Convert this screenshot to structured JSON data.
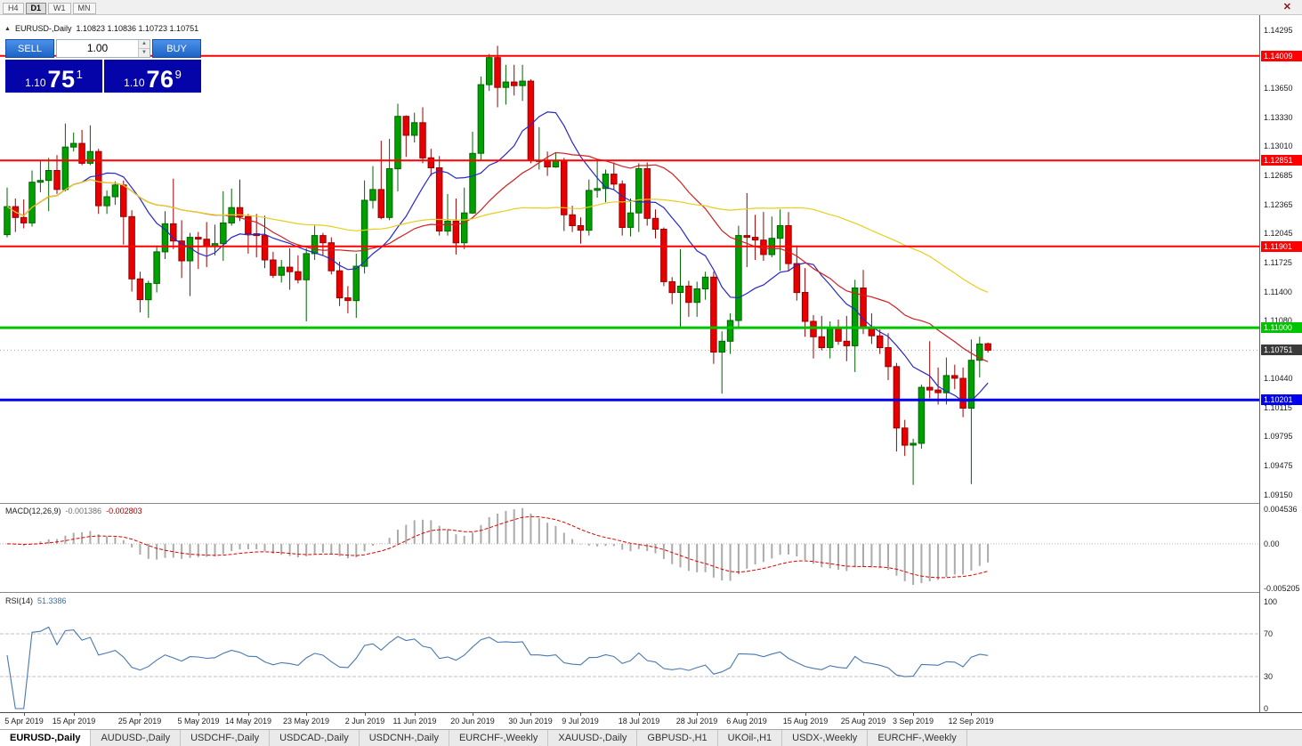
{
  "toolbar": {
    "timeframes": [
      {
        "label": "H4",
        "active": false
      },
      {
        "label": "D1",
        "active": true
      },
      {
        "label": "W1",
        "active": false
      },
      {
        "label": "MN",
        "active": false
      }
    ],
    "close_icon": "✕"
  },
  "header": {
    "collapse_icon": "▲",
    "title": "EURUSD-,Daily",
    "ohlc": "1.10823 1.10836 1.10723 1.10751"
  },
  "trade_panel": {
    "sell_label": "SELL",
    "buy_label": "BUY",
    "lot": "1.00",
    "lot_up_icon": "▲",
    "lot_down_icon": "▼",
    "sell_price": {
      "prefix": "1.10",
      "big": "75",
      "sup": "1"
    },
    "buy_price": {
      "prefix": "1.10",
      "big": "76",
      "sup": "9"
    }
  },
  "tabs": {
    "items": [
      {
        "label": "EURUSD-,Daily",
        "active": true
      },
      {
        "label": "AUDUSD-,Daily",
        "active": false
      },
      {
        "label": "USDCHF-,Daily",
        "active": false
      },
      {
        "label": "USDCAD-,Daily",
        "active": false
      },
      {
        "label": "USDCNH-,Daily",
        "active": false
      },
      {
        "label": "EURCHF-,Weekly",
        "active": false
      },
      {
        "label": "XAUUSD-,Daily",
        "active": false
      },
      {
        "label": "GBPUSD-,H1",
        "active": false
      },
      {
        "label": "UKOil-,H1",
        "active": false
      },
      {
        "label": "USDX-,Weekly",
        "active": false
      },
      {
        "label": "EURCHF-,Weekly",
        "active": false
      }
    ]
  },
  "chart_data": {
    "type": "candlestick",
    "symbol": "EURUSD-",
    "timeframe": "Daily",
    "start_date": "2019-04-03",
    "candle_colors": {
      "up_fill": "#00A000",
      "up_stroke": "#006400",
      "down_fill": "#E80000",
      "down_stroke": "#990000"
    },
    "price_axis": {
      "min": 1.0906,
      "max": 1.1446,
      "ticks": [
        "1.14295",
        "1.13650",
        "1.13330",
        "1.13010",
        "1.12685",
        "1.12365",
        "1.12045",
        "1.11725",
        "1.11400",
        "1.11080",
        "1.10440",
        "1.10115",
        "1.09795",
        "1.09475",
        "1.09150"
      ]
    },
    "hlines": [
      {
        "label": "1.14009",
        "price": 1.14009,
        "color": "#FF0000",
        "width": 2
      },
      {
        "label": "1.12851",
        "price": 1.12851,
        "color": "#FF0000",
        "width": 2
      },
      {
        "label": "1.11901",
        "price": 1.11901,
        "color": "#FF0000",
        "width": 2
      },
      {
        "label": "1.11000",
        "price": 1.11,
        "color": "#00C400",
        "width": 3
      },
      {
        "label": "1.10201",
        "price": 1.10201,
        "color": "#0000F0",
        "width": 3
      }
    ],
    "current_price": {
      "label": "1.10751",
      "price": 1.10751,
      "bg": "#3A3A3A"
    },
    "moving_averages": [
      {
        "period": 10,
        "color": "#2828C8"
      },
      {
        "period": 24,
        "color": "#D02020"
      },
      {
        "period": 55,
        "color": "#E6CE1E"
      }
    ],
    "x_ticks": [
      {
        "label": "5 Apr 2019",
        "i": 2
      },
      {
        "label": "15 Apr 2019",
        "i": 8
      },
      {
        "label": "25 Apr 2019",
        "i": 16
      },
      {
        "label": "5 May 2019",
        "i": 23
      },
      {
        "label": "14 May 2019",
        "i": 29
      },
      {
        "label": "23 May 2019",
        "i": 36
      },
      {
        "label": "2 Jun 2019",
        "i": 43
      },
      {
        "label": "11 Jun 2019",
        "i": 49
      },
      {
        "label": "20 Jun 2019",
        "i": 56
      },
      {
        "label": "30 Jun 2019",
        "i": 63
      },
      {
        "label": "9 Jul 2019",
        "i": 69
      },
      {
        "label": "18 Jul 2019",
        "i": 76
      },
      {
        "label": "28 Jul 2019",
        "i": 83
      },
      {
        "label": "6 Aug 2019",
        "i": 89
      },
      {
        "label": "15 Aug 2019",
        "i": 96
      },
      {
        "label": "25 Aug 2019",
        "i": 103
      },
      {
        "label": "3 Sep 2019",
        "i": 109
      },
      {
        "label": "12 Sep 2019",
        "i": 116
      }
    ],
    "macd": {
      "name": "MACD(12,26,9)",
      "params": [
        12,
        26,
        9
      ],
      "value_main": "-0.001386",
      "value_signal": "-0.002803",
      "histogram_color": "#ABABAB",
      "signal_color": "#E00000",
      "range": {
        "max": 0.00475,
        "min": -0.0057
      },
      "ticks": [
        {
          "label": "0.004536",
          "v": 0.004536
        },
        {
          "label": "0.00",
          "v": 0
        },
        {
          "label": "-0.005205",
          "v": -0.005205
        }
      ]
    },
    "rsi": {
      "name": "RSI(14)",
      "period": 14,
      "value": "51.3386",
      "color": "#4878B0",
      "levels": [
        70,
        30
      ],
      "ticks": [
        {
          "label": "100",
          "v": 100
        },
        {
          "label": "70",
          "v": 70
        },
        {
          "label": "30",
          "v": 30
        },
        {
          "label": "0",
          "v": 0
        }
      ]
    },
    "candles": [
      [
        1.1203,
        1.1255,
        1.12,
        1.1234
      ],
      [
        1.1234,
        1.1243,
        1.1206,
        1.1222
      ],
      [
        1.1222,
        1.1242,
        1.121,
        1.1216
      ],
      [
        1.1216,
        1.1274,
        1.1212,
        1.1261
      ],
      [
        1.1261,
        1.1285,
        1.125,
        1.1263
      ],
      [
        1.1263,
        1.1288,
        1.1229,
        1.1274
      ],
      [
        1.1274,
        1.1291,
        1.1248,
        1.1253
      ],
      [
        1.1253,
        1.1326,
        1.1251,
        1.13
      ],
      [
        1.13,
        1.1316,
        1.1295,
        1.1304
      ],
      [
        1.1304,
        1.1319,
        1.128,
        1.1282
      ],
      [
        1.1282,
        1.1324,
        1.128,
        1.1295
      ],
      [
        1.1295,
        1.1298,
        1.1226,
        1.1235
      ],
      [
        1.1235,
        1.1252,
        1.1226,
        1.1245
      ],
      [
        1.1245,
        1.1262,
        1.1236,
        1.1258
      ],
      [
        1.1258,
        1.1263,
        1.1192,
        1.1223
      ],
      [
        1.1223,
        1.123,
        1.114,
        1.1154
      ],
      [
        1.1154,
        1.1162,
        1.1117,
        1.1131
      ],
      [
        1.1131,
        1.1152,
        1.1111,
        1.1149
      ],
      [
        1.1149,
        1.1191,
        1.1139,
        1.1184
      ],
      [
        1.1184,
        1.1229,
        1.1176,
        1.1215
      ],
      [
        1.1215,
        1.1265,
        1.1187,
        1.1196
      ],
      [
        1.1196,
        1.1219,
        1.1155,
        1.1174
      ],
      [
        1.1174,
        1.1205,
        1.1135,
        1.12
      ],
      [
        1.12,
        1.1206,
        1.1165,
        1.1198
      ],
      [
        1.1198,
        1.1217,
        1.1167,
        1.119
      ],
      [
        1.119,
        1.1214,
        1.118,
        1.1193
      ],
      [
        1.1193,
        1.1251,
        1.1174,
        1.1216
      ],
      [
        1.1216,
        1.1254,
        1.1213,
        1.1233
      ],
      [
        1.1233,
        1.1264,
        1.1218,
        1.1223
      ],
      [
        1.1223,
        1.1226,
        1.1182,
        1.1204
      ],
      [
        1.1204,
        1.1226,
        1.1178,
        1.1202
      ],
      [
        1.1202,
        1.1224,
        1.1166,
        1.1175
      ],
      [
        1.1175,
        1.1184,
        1.1155,
        1.1158
      ],
      [
        1.1158,
        1.1175,
        1.115,
        1.1167
      ],
      [
        1.1167,
        1.1188,
        1.1142,
        1.1162
      ],
      [
        1.1162,
        1.118,
        1.1149,
        1.1153
      ],
      [
        1.1153,
        1.1188,
        1.1107,
        1.1182
      ],
      [
        1.1182,
        1.1213,
        1.1175,
        1.1202
      ],
      [
        1.1202,
        1.1205,
        1.118,
        1.1194
      ],
      [
        1.1194,
        1.12,
        1.1159,
        1.1163
      ],
      [
        1.1163,
        1.1173,
        1.1124,
        1.1133
      ],
      [
        1.1133,
        1.1146,
        1.1116,
        1.113
      ],
      [
        1.113,
        1.1182,
        1.1111,
        1.1168
      ],
      [
        1.1168,
        1.1263,
        1.116,
        1.1241
      ],
      [
        1.1241,
        1.1279,
        1.1232,
        1.1253
      ],
      [
        1.1253,
        1.1307,
        1.122,
        1.1222
      ],
      [
        1.1222,
        1.1309,
        1.1219,
        1.1276
      ],
      [
        1.1276,
        1.1348,
        1.1251,
        1.1334
      ],
      [
        1.1334,
        1.1335,
        1.1289,
        1.1313
      ],
      [
        1.1313,
        1.1338,
        1.1305,
        1.1327
      ],
      [
        1.1327,
        1.1344,
        1.1282,
        1.1288
      ],
      [
        1.1288,
        1.1298,
        1.1268,
        1.1277
      ],
      [
        1.1277,
        1.129,
        1.1202,
        1.1207
      ],
      [
        1.1207,
        1.1248,
        1.1202,
        1.1218
      ],
      [
        1.1218,
        1.1243,
        1.1181,
        1.1194
      ],
      [
        1.1194,
        1.1255,
        1.1187,
        1.1227
      ],
      [
        1.1227,
        1.1317,
        1.1226,
        1.1293
      ],
      [
        1.1293,
        1.1378,
        1.1286,
        1.1369
      ],
      [
        1.1369,
        1.1403,
        1.1362,
        1.1399
      ],
      [
        1.1399,
        1.1412,
        1.1344,
        1.1366
      ],
      [
        1.1366,
        1.1391,
        1.1347,
        1.1372
      ],
      [
        1.1372,
        1.1391,
        1.1357,
        1.1368
      ],
      [
        1.1368,
        1.1391,
        1.1351,
        1.1373
      ],
      [
        1.1373,
        1.1375,
        1.1282,
        1.1285
      ],
      [
        1.1285,
        1.1322,
        1.1275,
        1.1285
      ],
      [
        1.1285,
        1.1295,
        1.1268,
        1.1278
      ],
      [
        1.1278,
        1.1294,
        1.1277,
        1.1285
      ],
      [
        1.1285,
        1.1288,
        1.1207,
        1.1225
      ],
      [
        1.1225,
        1.1235,
        1.1206,
        1.1213
      ],
      [
        1.1213,
        1.1222,
        1.1193,
        1.1208
      ],
      [
        1.1208,
        1.1264,
        1.1202,
        1.1252
      ],
      [
        1.1252,
        1.1286,
        1.1244,
        1.1254
      ],
      [
        1.1254,
        1.1275,
        1.1239,
        1.127
      ],
      [
        1.127,
        1.1283,
        1.1253,
        1.1259
      ],
      [
        1.1259,
        1.1263,
        1.1202,
        1.1211
      ],
      [
        1.1211,
        1.1243,
        1.1201,
        1.1227
      ],
      [
        1.1227,
        1.1282,
        1.1206,
        1.1276
      ],
      [
        1.1276,
        1.1283,
        1.1213,
        1.1221
      ],
      [
        1.1221,
        1.1231,
        1.1199,
        1.1209
      ],
      [
        1.1209,
        1.1211,
        1.1146,
        1.1151
      ],
      [
        1.1151,
        1.1156,
        1.1126,
        1.1139
      ],
      [
        1.1139,
        1.1187,
        1.1101,
        1.1146
      ],
      [
        1.1146,
        1.1152,
        1.1112,
        1.1128
      ],
      [
        1.1128,
        1.1151,
        1.1112,
        1.1143
      ],
      [
        1.1143,
        1.1162,
        1.1131,
        1.1156
      ],
      [
        1.1156,
        1.1162,
        1.106,
        1.1073
      ],
      [
        1.1073,
        1.1096,
        1.1027,
        1.1085
      ],
      [
        1.1085,
        1.1116,
        1.1071,
        1.1108
      ],
      [
        1.1108,
        1.1213,
        1.1101,
        1.1202
      ],
      [
        1.1202,
        1.1249,
        1.1167,
        1.12
      ],
      [
        1.12,
        1.1225,
        1.1175,
        1.1197
      ],
      [
        1.1197,
        1.1228,
        1.1174,
        1.1181
      ],
      [
        1.1181,
        1.1223,
        1.1178,
        1.1199
      ],
      [
        1.1199,
        1.1231,
        1.1163,
        1.1213
      ],
      [
        1.1213,
        1.1228,
        1.1163,
        1.1171
      ],
      [
        1.1171,
        1.1191,
        1.113,
        1.1139
      ],
      [
        1.1139,
        1.1166,
        1.109,
        1.1107
      ],
      [
        1.1107,
        1.1114,
        1.1066,
        1.109
      ],
      [
        1.109,
        1.1113,
        1.1075,
        1.1078
      ],
      [
        1.1078,
        1.1107,
        1.1066,
        1.1099
      ],
      [
        1.1099,
        1.1109,
        1.1081,
        1.1085
      ],
      [
        1.1085,
        1.1113,
        1.1063,
        1.108
      ],
      [
        1.108,
        1.1153,
        1.1051,
        1.1144
      ],
      [
        1.1144,
        1.1164,
        1.1093,
        1.1101
      ],
      [
        1.1101,
        1.1116,
        1.1082,
        1.1091
      ],
      [
        1.1091,
        1.1098,
        1.1071,
        1.1078
      ],
      [
        1.1078,
        1.1094,
        1.1042,
        1.1057
      ],
      [
        1.1057,
        1.1061,
        1.0963,
        1.0989
      ],
      [
        1.0989,
        1.0998,
        1.0958,
        1.097
      ],
      [
        1.097,
        1.0977,
        1.0926,
        1.0972
      ],
      [
        1.0972,
        1.1037,
        1.0966,
        1.1034
      ],
      [
        1.1034,
        1.1085,
        1.1022,
        1.1031
      ],
      [
        1.1031,
        1.1056,
        1.1015,
        1.1028
      ],
      [
        1.1028,
        1.1067,
        1.1015,
        1.1047
      ],
      [
        1.1047,
        1.1059,
        1.1032,
        1.1044
      ],
      [
        1.1044,
        1.1056,
        1.1001,
        1.1011
      ],
      [
        1.1011,
        1.1087,
        1.0927,
        1.1064
      ],
      [
        1.1064,
        1.109,
        1.1045,
        1.1082
      ],
      [
        1.10823,
        1.10836,
        1.10723,
        1.10751
      ]
    ]
  }
}
